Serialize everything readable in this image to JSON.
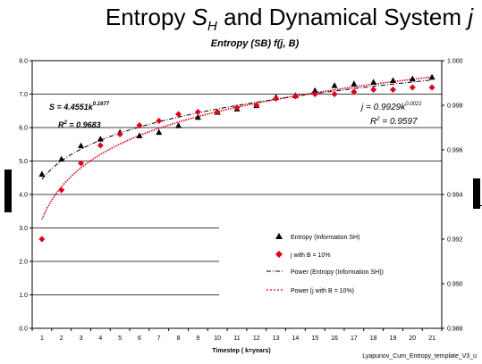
{
  "slide": {
    "title_prefix": "Entropy ",
    "title_symbol": "S",
    "title_subscript": "H",
    "title_middle": " and Dynamical System ",
    "title_symbol2": "j",
    "footer": "Lyapunov_Cum_Entropy_template_V3_u"
  },
  "chart_data": {
    "type": "scatter",
    "title": "Entropy (SB) f(j, B)",
    "xlabel": "Timestep ( k=years)",
    "x": [
      1,
      2,
      3,
      4,
      5,
      6,
      7,
      8,
      9,
      10,
      11,
      12,
      13,
      14,
      15,
      16,
      17,
      18,
      19,
      20,
      21
    ],
    "xticks": [
      "1",
      "2",
      "3",
      "4",
      "5",
      "6",
      "7",
      "8",
      "9",
      "10",
      "11",
      "12",
      "13",
      "14",
      "15",
      "16",
      "17",
      "18",
      "19",
      "20",
      "21"
    ],
    "ylim": [
      0,
      8
    ],
    "yticks": [
      "0.0",
      "1.0",
      "2.0",
      "3.0",
      "4.0",
      "5.0",
      "6.0",
      "7.0",
      "8.0"
    ],
    "y2lim": [
      0.988,
      1.0
    ],
    "y2ticks": [
      "0.988",
      "0.990",
      "0.992",
      "0.994",
      "0.996",
      "0.998",
      "1.000"
    ],
    "grid": true,
    "legend_position": "lower-right",
    "series": [
      {
        "name": "Entropy (Information SH)",
        "axis": "left",
        "marker": "triangle",
        "color": "#000000",
        "values": [
          4.6,
          5.05,
          5.45,
          5.65,
          5.85,
          5.75,
          5.85,
          6.05,
          6.3,
          6.45,
          6.55,
          6.65,
          6.9,
          6.95,
          7.1,
          7.25,
          7.3,
          7.35,
          7.4,
          7.45,
          7.5
        ]
      },
      {
        "name": "j with B = 10%",
        "axis": "right",
        "marker": "diamond",
        "color": "#e0001b",
        "values": [
          0.992,
          0.9942,
          0.9954,
          0.9962,
          0.9967,
          0.9971,
          0.9973,
          0.9976,
          0.9977,
          0.9977,
          0.9979,
          0.998,
          0.9983,
          0.9984,
          0.9985,
          0.9985,
          0.9986,
          0.9987,
          0.9987,
          0.9988,
          0.9988
        ]
      },
      {
        "name": "Power (Entropy (Information SH))",
        "axis": "left",
        "style": "dash-dot",
        "color": "#000000",
        "fit": {
          "a": 4.4551,
          "b": 0.1677
        }
      },
      {
        "name": "Power (j with B = 10%)",
        "axis": "right",
        "style": "dotted",
        "color": "#e0001b",
        "fit": {
          "a": 0.9929,
          "b": 0.0021
        }
      }
    ],
    "annotations": {
      "left_eq": "S = 4.4551k",
      "left_exp": "0.1677",
      "left_r2_pre": "R",
      "left_r2_sup": "2",
      "left_r2_val": " = 0.9683",
      "right_eq": "j = 0.9929k",
      "right_exp": "0.0021",
      "right_r2_pre": "R",
      "right_r2_sup": "2",
      "right_r2_val": " = 0.9597"
    }
  }
}
